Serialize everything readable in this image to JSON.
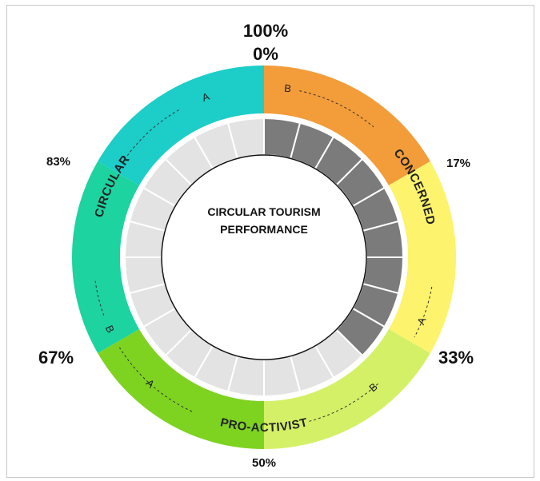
{
  "diagram": {
    "title_line1": "CIRCULAR TOURISM",
    "title_line2": "PERFORMANCE",
    "percent_labels": {
      "p100": "100%",
      "p0": "0%",
      "p17": "17%",
      "p33": "33%",
      "p50": "50%",
      "p67": "67%",
      "p83": "83%"
    },
    "segments": [
      {
        "id": "concerned",
        "label": "CONCERNED",
        "color": "#f39c3a",
        "color2": "#fdf36c",
        "a": "A",
        "b": "B"
      },
      {
        "id": "pro-activist",
        "label": "PRO-ACTIVIST",
        "color": "#d4f067",
        "color2": "#7ed321",
        "a": "A",
        "b": "B"
      },
      {
        "id": "circular",
        "label": "CIRCULAR",
        "color": "#1dd3a0",
        "color2": "#1ccdc8",
        "a": "A",
        "b": "B"
      }
    ],
    "inner_ring": {
      "cell_count": 24,
      "filled_cells": 9,
      "filled_color": "#7b7b7b",
      "empty_color": "#e3e3e3"
    }
  }
}
